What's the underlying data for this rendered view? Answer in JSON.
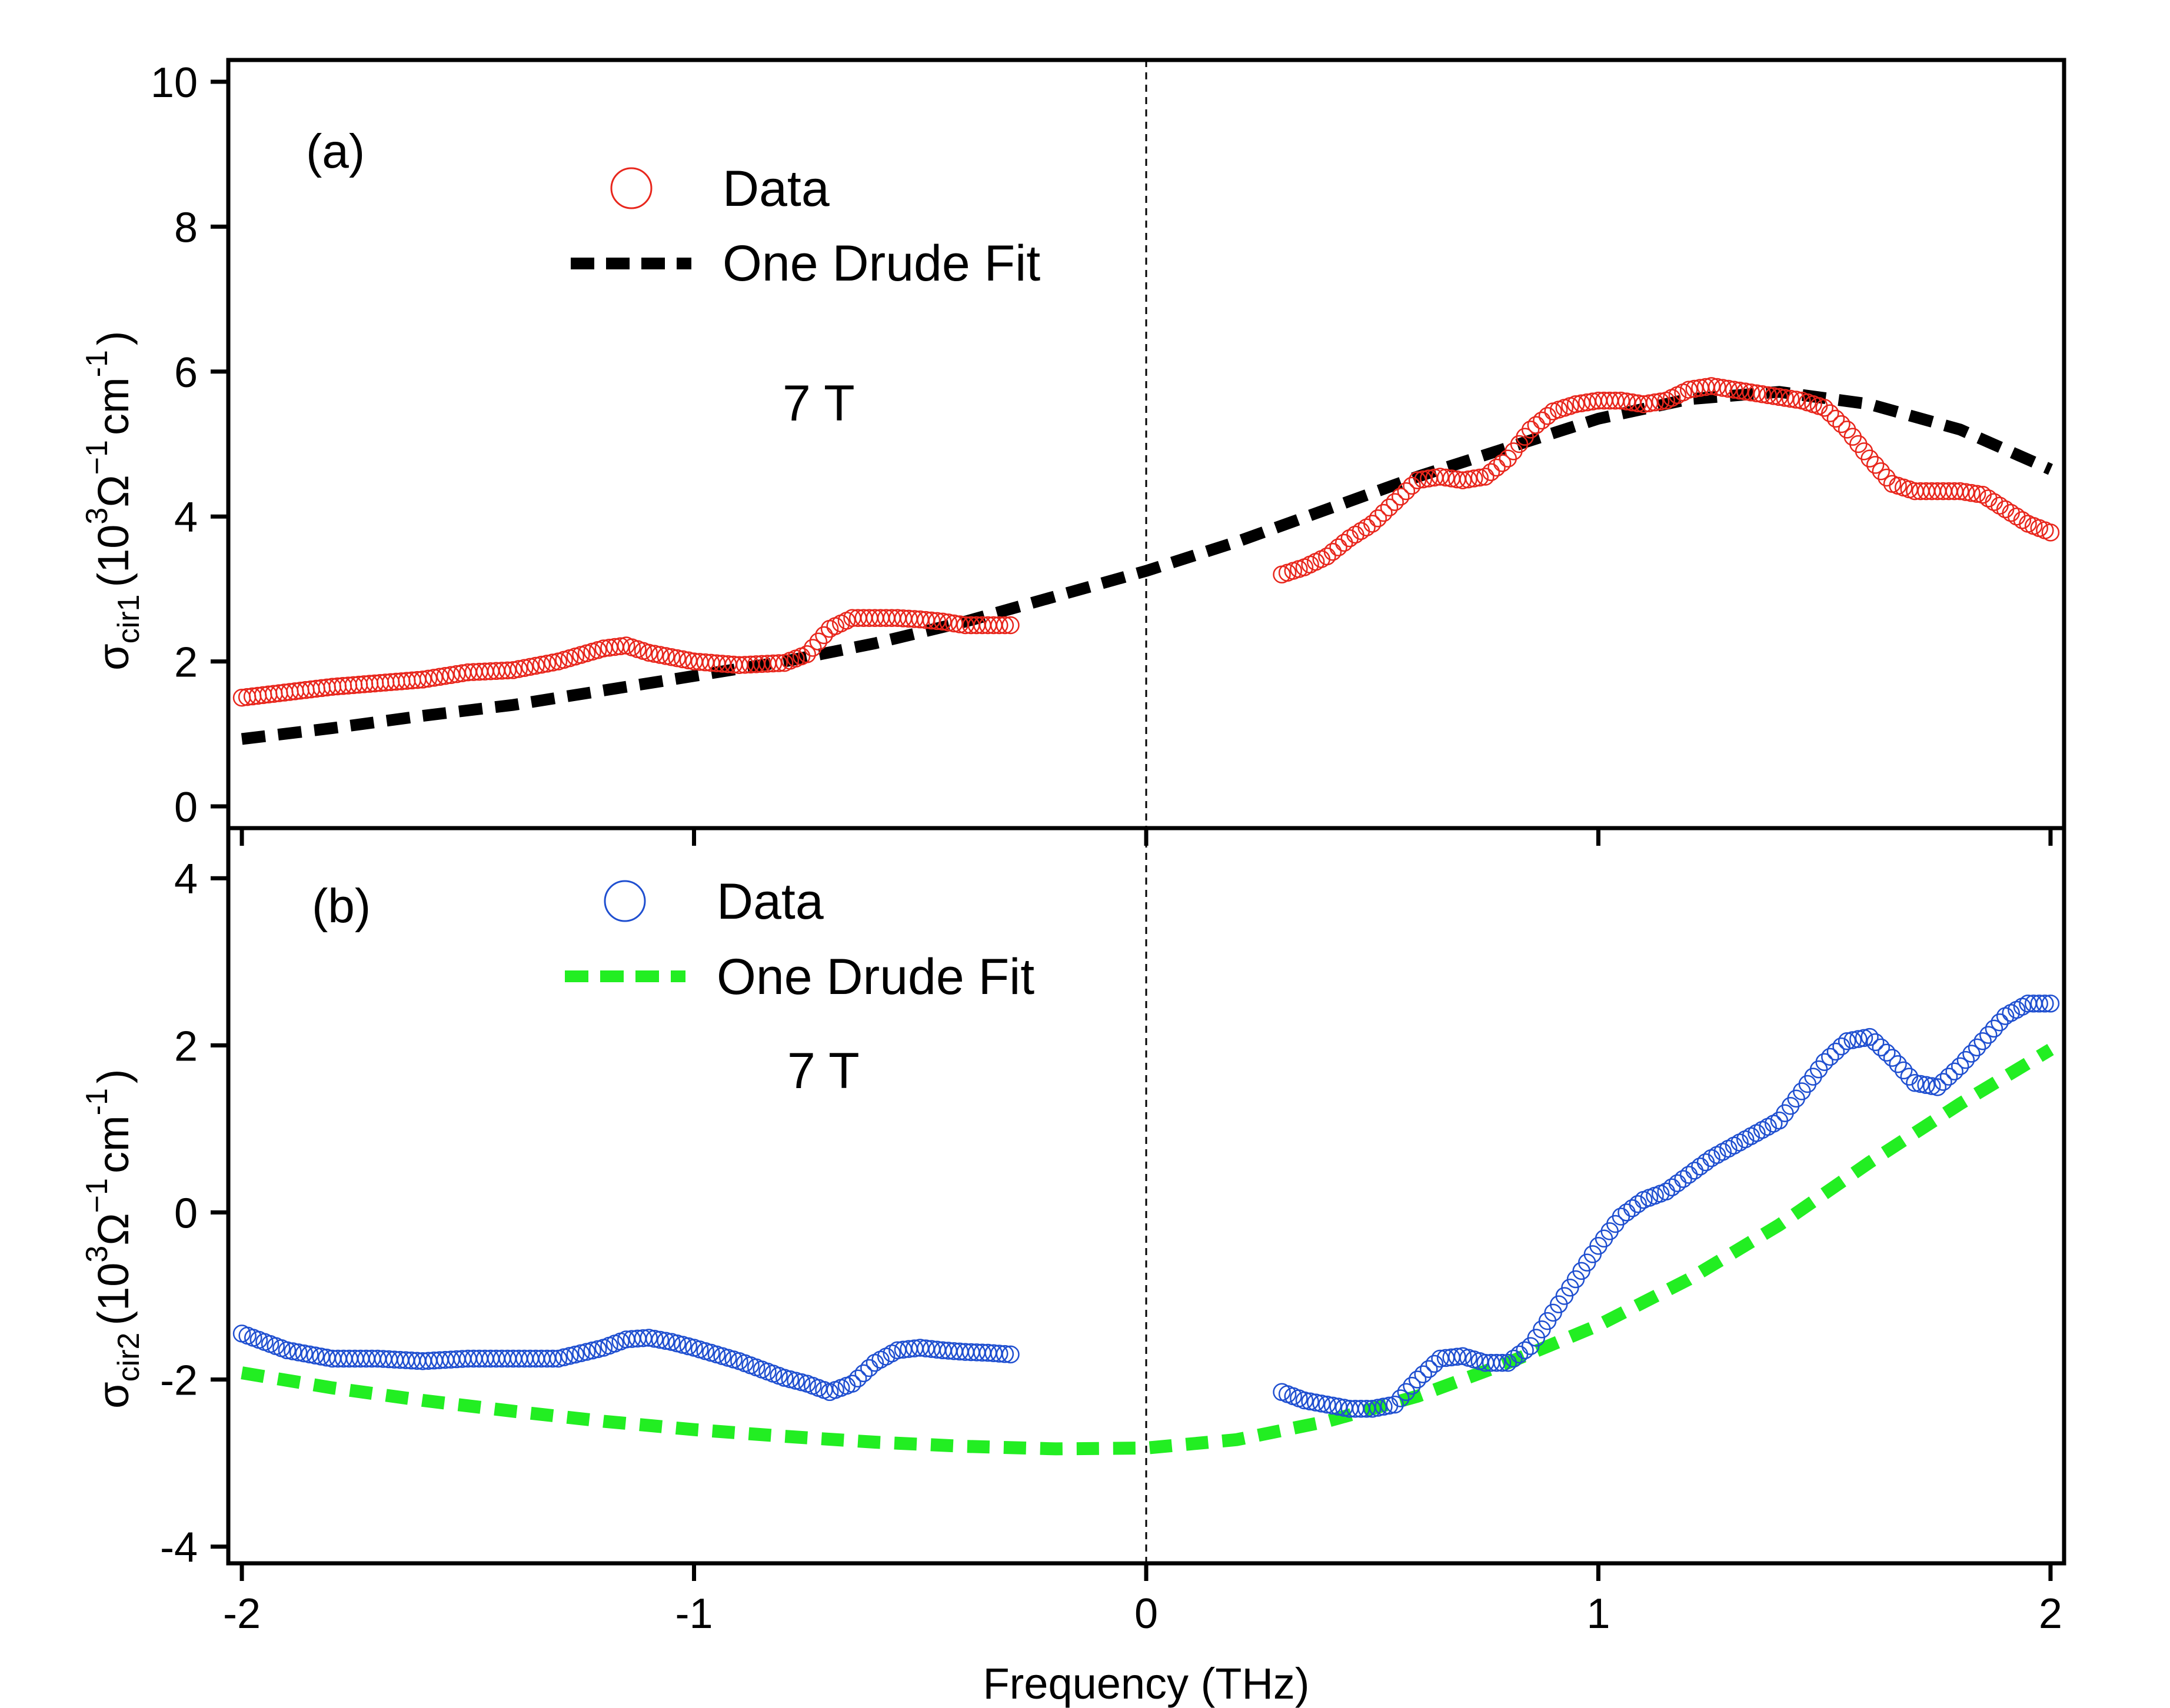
{
  "chart_data": [
    {
      "panel": "(a)",
      "type": "scatter",
      "annotation": "7 T",
      "ylabel": {
        "symbol": "σ",
        "sub": "cir1",
        "unit_base": "(10",
        "unit_exp": "3",
        "unit_ohm": "Ω",
        "unit_ohm_exp": "−1",
        "unit_cm": "cm",
        "unit_cm_exp": "-1",
        "unit_close": ")"
      },
      "xlabel": "Frequency (THz)",
      "xlim": [
        -2.03,
        2.03
      ],
      "ylim": [
        -0.3,
        10.3
      ],
      "xticks": [
        -2,
        -1,
        0,
        1,
        2
      ],
      "xtick_labels": [
        "-2",
        "-1",
        "0",
        "1",
        "2"
      ],
      "yticks": [
        0,
        2,
        4,
        6,
        8,
        10
      ],
      "ytick_labels": [
        "0",
        "2",
        "4",
        "6",
        "8",
        "10"
      ],
      "legend": [
        {
          "label": "Data",
          "marker": "open-circle",
          "color": "#e8261c"
        },
        {
          "label": "One Drude Fit",
          "style": "dashed-line",
          "color": "#000000"
        }
      ],
      "series": [
        {
          "name": "Data",
          "color": "#e8261c",
          "segments": [
            {
              "x": [
                -2.0,
                -1.8,
                -1.6,
                -1.5,
                -1.4,
                -1.3,
                -1.2,
                -1.15,
                -1.1,
                -1.0,
                -0.9,
                -0.8,
                -0.75,
                -0.7,
                -0.65,
                -0.6,
                -0.55,
                -0.5,
                -0.45,
                -0.4,
                -0.35,
                -0.3
              ],
              "y": [
                1.5,
                1.65,
                1.75,
                1.85,
                1.88,
                2.0,
                2.18,
                2.22,
                2.12,
                2.0,
                1.95,
                1.98,
                2.1,
                2.45,
                2.6,
                2.6,
                2.6,
                2.58,
                2.55,
                2.5,
                2.5,
                2.5
              ]
            },
            {
              "x": [
                0.3,
                0.35,
                0.4,
                0.45,
                0.5,
                0.55,
                0.6,
                0.65,
                0.7,
                0.75,
                0.8,
                0.85,
                0.9,
                0.95,
                1.0,
                1.05,
                1.1,
                1.15,
                1.2,
                1.25,
                1.3,
                1.35,
                1.4,
                1.45,
                1.5,
                1.55,
                1.6,
                1.65,
                1.7,
                1.75,
                1.8,
                1.85,
                1.9,
                1.95,
                2.0
              ],
              "y": [
                3.2,
                3.3,
                3.45,
                3.7,
                3.9,
                4.2,
                4.5,
                4.55,
                4.5,
                4.55,
                4.8,
                5.2,
                5.45,
                5.55,
                5.6,
                5.6,
                5.55,
                5.6,
                5.75,
                5.8,
                5.75,
                5.7,
                5.65,
                5.6,
                5.5,
                5.2,
                4.8,
                4.45,
                4.35,
                4.35,
                4.35,
                4.3,
                4.1,
                3.9,
                3.78
              ]
            }
          ]
        },
        {
          "name": "One Drude Fit",
          "color": "#000000",
          "x": [
            -2.0,
            -1.8,
            -1.6,
            -1.4,
            -1.2,
            -1.0,
            -0.8,
            -0.6,
            -0.4,
            -0.2,
            0.0,
            0.2,
            0.4,
            0.6,
            0.8,
            1.0,
            1.2,
            1.4,
            1.6,
            1.8,
            2.0
          ],
          "y": [
            0.93,
            1.08,
            1.25,
            1.4,
            1.6,
            1.8,
            2.0,
            2.25,
            2.55,
            2.9,
            3.25,
            3.65,
            4.1,
            4.55,
            4.95,
            5.35,
            5.62,
            5.72,
            5.55,
            5.2,
            4.65
          ]
        }
      ]
    },
    {
      "panel": "(b)",
      "type": "scatter",
      "annotation": "7 T",
      "ylabel": {
        "symbol": "σ",
        "sub": "cir2",
        "unit_base": "(10",
        "unit_exp": "3",
        "unit_ohm": "Ω",
        "unit_ohm_exp": "−1",
        "unit_cm": "cm",
        "unit_cm_exp": "-1",
        "unit_close": ")"
      },
      "xlabel": "Frequency (THz)",
      "xlim": [
        -2.03,
        2.03
      ],
      "ylim": [
        -4.2,
        4.6
      ],
      "xticks": [
        -2,
        -1,
        0,
        1,
        2
      ],
      "xtick_labels": [
        "-2",
        "-1",
        "0",
        "1",
        "2"
      ],
      "yticks": [
        -4,
        -2,
        0,
        2,
        4
      ],
      "ytick_labels": [
        "-4",
        "-2",
        "0",
        "2",
        "4"
      ],
      "legend": [
        {
          "label": "Data",
          "marker": "open-circle",
          "color": "#1f4fd0"
        },
        {
          "label": "One Drude Fit",
          "style": "dashed-line",
          "color": "#22ee22"
        }
      ],
      "series": [
        {
          "name": "Data",
          "color": "#1f4fd0",
          "segments": [
            {
              "x": [
                -2.0,
                -1.9,
                -1.8,
                -1.7,
                -1.6,
                -1.5,
                -1.4,
                -1.3,
                -1.2,
                -1.15,
                -1.1,
                -1.05,
                -1.0,
                -0.95,
                -0.9,
                -0.85,
                -0.8,
                -0.75,
                -0.7,
                -0.65,
                -0.6,
                -0.55,
                -0.5,
                -0.45,
                -0.4,
                -0.35,
                -0.3
              ],
              "y": [
                -1.45,
                -1.65,
                -1.75,
                -1.75,
                -1.78,
                -1.75,
                -1.75,
                -1.75,
                -1.62,
                -1.52,
                -1.5,
                -1.55,
                -1.62,
                -1.7,
                -1.78,
                -1.88,
                -1.98,
                -2.05,
                -2.15,
                -2.05,
                -1.8,
                -1.65,
                -1.62,
                -1.65,
                -1.67,
                -1.68,
                -1.7
              ]
            },
            {
              "x": [
                0.3,
                0.35,
                0.4,
                0.45,
                0.5,
                0.55,
                0.6,
                0.65,
                0.7,
                0.75,
                0.8,
                0.85,
                0.9,
                0.95,
                1.0,
                1.05,
                1.1,
                1.15,
                1.2,
                1.25,
                1.3,
                1.35,
                1.4,
                1.45,
                1.5,
                1.55,
                1.6,
                1.65,
                1.7,
                1.75,
                1.8,
                1.85,
                1.9,
                1.95,
                2.0
              ],
              "y": [
                -2.15,
                -2.25,
                -2.3,
                -2.35,
                -2.35,
                -2.3,
                -2.0,
                -1.75,
                -1.72,
                -1.8,
                -1.8,
                -1.6,
                -1.2,
                -0.8,
                -0.4,
                -0.05,
                0.15,
                0.25,
                0.45,
                0.65,
                0.8,
                0.95,
                1.1,
                1.45,
                1.8,
                2.05,
                2.1,
                1.85,
                1.55,
                1.5,
                1.75,
                2.05,
                2.35,
                2.5,
                2.5
              ]
            }
          ]
        },
        {
          "name": "One Drude Fit",
          "color": "#22ee22",
          "x": [
            -2.0,
            -1.8,
            -1.6,
            -1.4,
            -1.2,
            -1.0,
            -0.8,
            -0.6,
            -0.4,
            -0.2,
            0.0,
            0.2,
            0.4,
            0.6,
            0.8,
            1.0,
            1.2,
            1.4,
            1.6,
            1.8,
            2.0
          ],
          "y": [
            -1.92,
            -2.1,
            -2.25,
            -2.38,
            -2.5,
            -2.6,
            -2.68,
            -2.75,
            -2.8,
            -2.83,
            -2.82,
            -2.72,
            -2.5,
            -2.2,
            -1.8,
            -1.35,
            -0.8,
            -0.15,
            0.6,
            1.3,
            1.95
          ]
        }
      ]
    }
  ]
}
